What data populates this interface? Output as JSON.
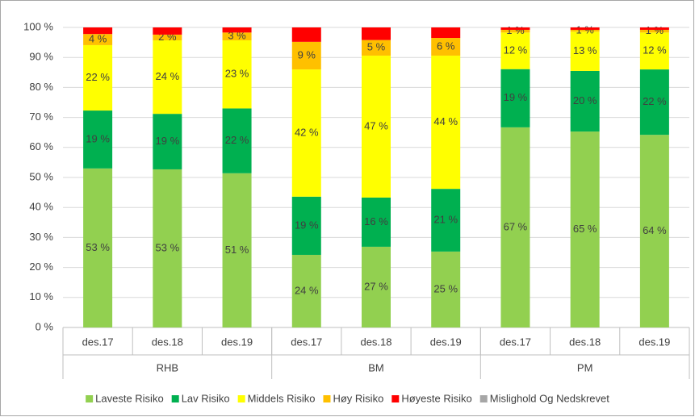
{
  "chart_data": {
    "type": "stacked_bar",
    "categories": [
      "des.17",
      "des.18",
      "des.19",
      "des.17",
      "des.18",
      "des.19",
      "des.17",
      "des.18",
      "des.19"
    ],
    "groups": [
      "RHB",
      "BM",
      "PM"
    ],
    "ylim": [
      0,
      100
    ],
    "yticks": [
      {
        "value": 0,
        "label": "0 %"
      },
      {
        "value": 10,
        "label": "10 %"
      },
      {
        "value": 20,
        "label": "20 %"
      },
      {
        "value": 30,
        "label": "30 %"
      },
      {
        "value": 40,
        "label": "40 %"
      },
      {
        "value": 50,
        "label": "50 %"
      },
      {
        "value": 60,
        "label": "60 %"
      },
      {
        "value": 70,
        "label": "70 %"
      },
      {
        "value": 80,
        "label": "80 %"
      },
      {
        "value": 90,
        "label": "90 %"
      },
      {
        "value": {
          "value": 100,
          "label": "100 %"
        },
        "label": "100 %"
      }
    ],
    "grid": true,
    "legend": "bottom",
    "series": [
      {
        "name": "Laveste Risiko",
        "color": "#92d050",
        "values": [
          53.0,
          52.7,
          51.4,
          24.2,
          26.9,
          25.3,
          66.7,
          65.3,
          64.2
        ],
        "value_labels": [
          "53 %",
          "53 %",
          "51 %",
          "24 %",
          "27 %",
          "25 %",
          "67 %",
          "65 %",
          "64 %"
        ]
      },
      {
        "name": "Lav Risiko",
        "color": "#00b050",
        "values": [
          19.3,
          18.5,
          21.6,
          19.4,
          16.4,
          20.9,
          19.4,
          20.2,
          21.8
        ],
        "value_labels": [
          "19 %",
          "19 %",
          "22 %",
          "19 %",
          "16 %",
          "21 %",
          "19 %",
          "20 %",
          "22 %"
        ]
      },
      {
        "name": "Middels Risiko",
        "color": "#ffff00",
        "values": [
          21.8,
          24.5,
          22.7,
          42.4,
          47.3,
          44.4,
          12.2,
          13.1,
          12.3
        ],
        "value_labels": [
          "22 %",
          "24 %",
          "23 %",
          "42 %",
          "47 %",
          "44 %",
          "12 %",
          "13 %",
          "12 %"
        ]
      },
      {
        "name": "Høy Risiko",
        "color": "#ffc000",
        "values": [
          3.7,
          1.9,
          2.6,
          9.2,
          5.2,
          5.9,
          0.9,
          0.6,
          0.9
        ],
        "value_labels": [
          "4 %",
          "2 %",
          "3 %",
          "9 %",
          "5 %",
          "6 %",
          "1 %",
          "1 %",
          "1 %"
        ]
      },
      {
        "name": "Høyeste Risiko",
        "color": "#ff0000",
        "values": [
          2.2,
          2.4,
          1.7,
          4.8,
          4.2,
          3.5,
          0.8,
          0.8,
          0.8
        ]
      },
      {
        "name": "Mislighold Og Nedskrevet",
        "color": "#a6a6a6",
        "values": [
          0,
          0,
          0,
          0,
          0,
          0,
          0,
          0,
          0
        ]
      }
    ]
  }
}
